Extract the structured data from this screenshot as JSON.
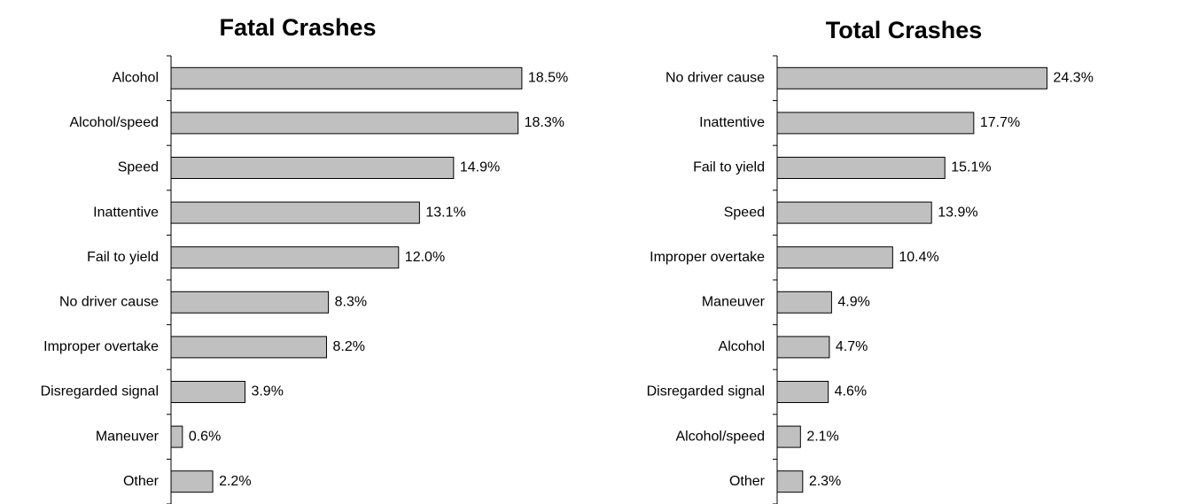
{
  "chart_data": [
    {
      "type": "bar",
      "orientation": "horizontal",
      "title": "Fatal Crashes",
      "categories": [
        "Alcohol",
        "Alcohol/speed",
        "Speed",
        "Inattentive",
        "Fail to yield",
        "No driver cause",
        "Improper overtake",
        "Disregarded signal",
        "Maneuver",
        "Other"
      ],
      "values": [
        18.5,
        18.3,
        14.9,
        13.1,
        12.0,
        8.3,
        8.2,
        3.9,
        0.6,
        2.2
      ],
      "value_labels": [
        "18.5%",
        "18.3%",
        "14.9%",
        "13.1%",
        "12.0%",
        "8.3%",
        "8.2%",
        "3.9%",
        "0.6%",
        "2.2%"
      ],
      "color": "#c0c0c0",
      "xlim": [
        0,
        20
      ]
    },
    {
      "type": "bar",
      "orientation": "horizontal",
      "title": "Total Crashes",
      "categories": [
        "No driver cause",
        "Inattentive",
        "Fail to yield",
        "Speed",
        "Improper overtake",
        "Maneuver",
        "Alcohol",
        "Disregarded signal",
        "Alcohol/speed",
        "Other"
      ],
      "values": [
        24.3,
        17.7,
        15.1,
        13.9,
        10.4,
        4.9,
        4.7,
        4.6,
        2.1,
        2.3
      ],
      "value_labels": [
        "24.3%",
        "17.7%",
        "15.1%",
        "13.9%",
        "10.4%",
        "4.9%",
        "4.7%",
        "4.6%",
        "2.1%",
        "2.3%"
      ],
      "color": "#c0c0c0",
      "xlim": [
        0,
        30
      ]
    }
  ]
}
